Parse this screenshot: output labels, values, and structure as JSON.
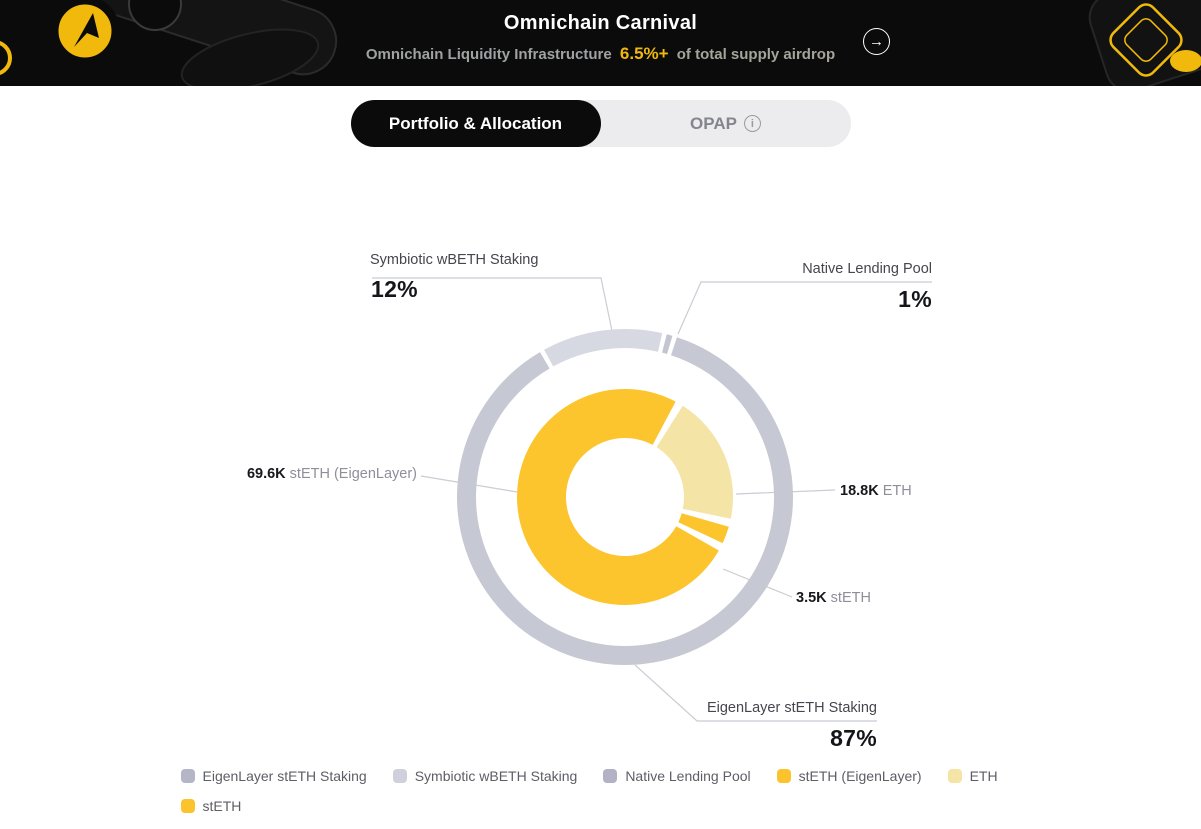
{
  "header": {
    "title": "Omnichain Carnival",
    "subtitle_left": "Omnichain Liquidity Infrastructure",
    "subtitle_highlight": "6.5%+",
    "subtitle_right": "of total supply airdrop",
    "accent_color": "#F0B90B",
    "arrow_icon": "→"
  },
  "tabs": [
    {
      "label": "Portfolio & Allocation",
      "active": true
    },
    {
      "label": "OPAP",
      "active": false,
      "info_icon": "info-circle-icon"
    }
  ],
  "chart_data": {
    "type": "pie",
    "layout": "two-ring donut, legend bottom, callout labels with leader lines",
    "outer_ring": {
      "name": "Strategy allocation (%)",
      "segments": [
        {
          "label": "EigenLayer stETH Staking",
          "value_pct": 87,
          "color": "#c6c8d3"
        },
        {
          "label": "Symbiotic wBETH Staking",
          "value_pct": 12,
          "color": "#d7d9e2"
        },
        {
          "label": "Native Lending Pool",
          "value_pct": 1,
          "color": "#c3c5d1"
        }
      ]
    },
    "inner_ring": {
      "name": "Asset allocation (tokens)",
      "segments": [
        {
          "label": "stETH (EigenLayer)",
          "value": "69.6K",
          "value_num": 69600,
          "color": "#fcc52e"
        },
        {
          "label": "ETH",
          "value": "18.8K",
          "value_num": 18800,
          "color": "#f4e4a5"
        },
        {
          "label": "stETH",
          "value": "3.5K",
          "value_num": 3500,
          "color": "#fcc52e"
        }
      ]
    },
    "callouts": {
      "symbiotic": {
        "name": "Symbiotic wBETH Staking",
        "pct": "12%"
      },
      "native": {
        "name": "Native Lending Pool",
        "pct": "1%"
      },
      "eigenlayer": {
        "name": "EigenLayer stETH Staking",
        "pct": "87%"
      },
      "steth_eigenlayer": {
        "value": "69.6K",
        "label": "stETH (EigenLayer)"
      },
      "eth": {
        "value": "18.8K",
        "label": "ETH"
      },
      "steth": {
        "value": "3.5K",
        "label": "stETH"
      }
    }
  },
  "legend": [
    {
      "label": "EigenLayer stETH Staking",
      "color": "#b4b6c7"
    },
    {
      "label": "Symbiotic wBETH Staking",
      "color": "#ced1dc"
    },
    {
      "label": "Native Lending Pool",
      "color": "#b1b3c4"
    },
    {
      "label": "stETH (EigenLayer)",
      "color": "#fbc42c"
    },
    {
      "label": "ETH",
      "color": "#f4e4a5"
    },
    {
      "label": "stETH",
      "color": "#fbc42c"
    }
  ]
}
